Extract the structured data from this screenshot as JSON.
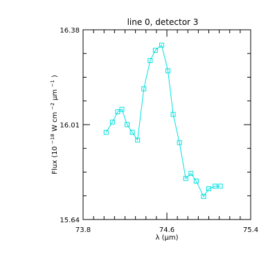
{
  "chart_data": {
    "type": "line",
    "title": "line 0, detector 3",
    "xlabel": "λ (μm)",
    "ylabel": {
      "prefix": "Flux (10",
      "exp1": "−18",
      "mid": " W cm",
      "exp2": "−2",
      "unit": "μm",
      "exp3": "−1",
      "suffix": ")"
    },
    "xlim": [
      73.8,
      75.4
    ],
    "ylim": [
      15.64,
      16.38
    ],
    "xticks": [
      {
        "value": 73.8,
        "label": "73.8"
      },
      {
        "value": 74.6,
        "label": "74.6"
      },
      {
        "value": 75.4,
        "label": "75.4"
      }
    ],
    "yticks": [
      {
        "value": 15.64,
        "label": "15.64"
      },
      {
        "value": 16.01,
        "label": "16.01"
      },
      {
        "value": 16.38,
        "label": "16.38"
      }
    ],
    "x_minor_step": 0.1,
    "y_minor_step": 0.0925,
    "series": [
      {
        "color": "#00e0e0",
        "marker": "square",
        "x": [
          74.02,
          74.08,
          74.13,
          74.17,
          74.22,
          74.27,
          74.32,
          74.38,
          74.44,
          74.49,
          74.55,
          74.61,
          74.66,
          74.72,
          74.78,
          74.83,
          74.88,
          74.95,
          75.0,
          75.06,
          75.11
        ],
        "y": [
          15.98,
          16.02,
          16.06,
          16.07,
          16.01,
          15.98,
          15.95,
          16.15,
          16.26,
          16.3,
          16.32,
          16.22,
          16.05,
          15.94,
          15.8,
          15.82,
          15.79,
          15.73,
          15.76,
          15.77,
          15.77
        ]
      }
    ]
  }
}
